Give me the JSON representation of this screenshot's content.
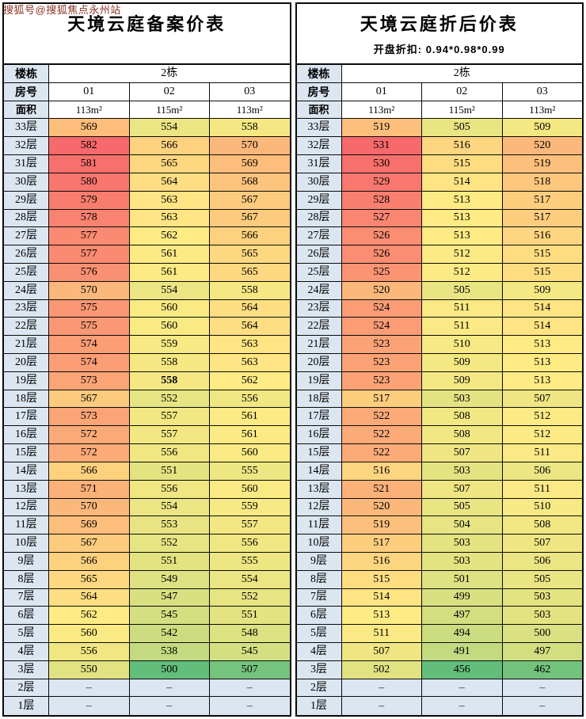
{
  "watermark": "搜狐号@搜狐焦点永州站",
  "colors": {
    "header_bg": "#DCE6F1",
    "border": "#0A0A0A",
    "text": "#000000",
    "watermark_color": "#8B3124",
    "scale_min_color": "#63BE7B",
    "scale_mid_color": "#FFEB84",
    "scale_max_color": "#F8696B"
  },
  "chart_data": [
    {
      "type": "heatmap",
      "title": "天境云庭备案价表",
      "subtitle": "",
      "header": {
        "building_label": "楼栋",
        "building_value": "2栋",
        "room_label": "房号",
        "rooms": [
          "01",
          "02",
          "03"
        ],
        "area_label": "面积",
        "areas": [
          "113m²",
          "115m²",
          "113m²"
        ]
      },
      "color_scale": {
        "min_color": "#63BE7B",
        "mid_color": "#FFEB84",
        "max_color": "#F8696B",
        "midpoint": "median"
      },
      "bold_cell": {
        "floor": "19层",
        "col_index": 1
      },
      "rows": [
        {
          "floor": "33层",
          "values": [
            569,
            554,
            558
          ]
        },
        {
          "floor": "32层",
          "values": [
            582,
            566,
            570
          ]
        },
        {
          "floor": "31层",
          "values": [
            581,
            565,
            569
          ]
        },
        {
          "floor": "30层",
          "values": [
            580,
            564,
            568
          ]
        },
        {
          "floor": "29层",
          "values": [
            579,
            563,
            567
          ]
        },
        {
          "floor": "28层",
          "values": [
            578,
            563,
            567
          ]
        },
        {
          "floor": "27层",
          "values": [
            577,
            562,
            566
          ]
        },
        {
          "floor": "26层",
          "values": [
            577,
            561,
            565
          ]
        },
        {
          "floor": "25层",
          "values": [
            576,
            561,
            565
          ]
        },
        {
          "floor": "24层",
          "values": [
            570,
            554,
            558
          ]
        },
        {
          "floor": "23层",
          "values": [
            575,
            560,
            564
          ]
        },
        {
          "floor": "22层",
          "values": [
            575,
            560,
            564
          ]
        },
        {
          "floor": "21层",
          "values": [
            574,
            559,
            563
          ]
        },
        {
          "floor": "20层",
          "values": [
            574,
            558,
            563
          ]
        },
        {
          "floor": "19层",
          "values": [
            573,
            558,
            562
          ]
        },
        {
          "floor": "18层",
          "values": [
            567,
            552,
            556
          ]
        },
        {
          "floor": "17层",
          "values": [
            573,
            557,
            561
          ]
        },
        {
          "floor": "16层",
          "values": [
            572,
            557,
            561
          ]
        },
        {
          "floor": "15层",
          "values": [
            572,
            556,
            560
          ]
        },
        {
          "floor": "14层",
          "values": [
            566,
            551,
            555
          ]
        },
        {
          "floor": "13层",
          "values": [
            571,
            556,
            560
          ]
        },
        {
          "floor": "12层",
          "values": [
            570,
            554,
            559
          ]
        },
        {
          "floor": "11层",
          "values": [
            569,
            553,
            557
          ]
        },
        {
          "floor": "10层",
          "values": [
            567,
            552,
            556
          ]
        },
        {
          "floor": "9层",
          "values": [
            566,
            551,
            555
          ]
        },
        {
          "floor": "8层",
          "values": [
            565,
            549,
            554
          ]
        },
        {
          "floor": "7层",
          "values": [
            564,
            547,
            552
          ]
        },
        {
          "floor": "6层",
          "values": [
            562,
            545,
            551
          ]
        },
        {
          "floor": "5层",
          "values": [
            560,
            542,
            548
          ]
        },
        {
          "floor": "4层",
          "values": [
            556,
            538,
            545
          ]
        },
        {
          "floor": "3层",
          "values": [
            550,
            500,
            507
          ]
        },
        {
          "floor": "2层",
          "values": [
            "–",
            "–",
            "–"
          ]
        },
        {
          "floor": "1层",
          "values": [
            "–",
            "–",
            "–"
          ]
        }
      ]
    },
    {
      "type": "heatmap",
      "title": "天境云庭折后价表",
      "subtitle": "开盘折扣: 0.94*0.98*0.99",
      "header": {
        "building_label": "楼栋",
        "building_value": "2栋",
        "room_label": "房号",
        "rooms": [
          "01",
          "02",
          "03"
        ],
        "area_label": "面积",
        "areas": [
          "113m²",
          "115m²",
          "113m²"
        ]
      },
      "color_scale": {
        "min_color": "#63BE7B",
        "mid_color": "#FFEB84",
        "max_color": "#F8696B",
        "midpoint": "median"
      },
      "bold_cell": null,
      "rows": [
        {
          "floor": "33层",
          "values": [
            519,
            505,
            509
          ]
        },
        {
          "floor": "32层",
          "values": [
            531,
            516,
            520
          ]
        },
        {
          "floor": "31层",
          "values": [
            530,
            515,
            519
          ]
        },
        {
          "floor": "30层",
          "values": [
            529,
            514,
            518
          ]
        },
        {
          "floor": "29层",
          "values": [
            528,
            513,
            517
          ]
        },
        {
          "floor": "28层",
          "values": [
            527,
            513,
            517
          ]
        },
        {
          "floor": "27层",
          "values": [
            526,
            513,
            516
          ]
        },
        {
          "floor": "26层",
          "values": [
            526,
            512,
            515
          ]
        },
        {
          "floor": "25层",
          "values": [
            525,
            512,
            515
          ]
        },
        {
          "floor": "24层",
          "values": [
            520,
            505,
            509
          ]
        },
        {
          "floor": "23层",
          "values": [
            524,
            511,
            514
          ]
        },
        {
          "floor": "22层",
          "values": [
            524,
            511,
            514
          ]
        },
        {
          "floor": "21层",
          "values": [
            523,
            510,
            513
          ]
        },
        {
          "floor": "20层",
          "values": [
            523,
            509,
            513
          ]
        },
        {
          "floor": "19层",
          "values": [
            523,
            509,
            513
          ]
        },
        {
          "floor": "18层",
          "values": [
            517,
            503,
            507
          ]
        },
        {
          "floor": "17层",
          "values": [
            522,
            508,
            512
          ]
        },
        {
          "floor": "16层",
          "values": [
            522,
            508,
            512
          ]
        },
        {
          "floor": "15层",
          "values": [
            522,
            507,
            511
          ]
        },
        {
          "floor": "14层",
          "values": [
            516,
            503,
            506
          ]
        },
        {
          "floor": "13层",
          "values": [
            521,
            507,
            511
          ]
        },
        {
          "floor": "12层",
          "values": [
            520,
            505,
            510
          ]
        },
        {
          "floor": "11层",
          "values": [
            519,
            504,
            508
          ]
        },
        {
          "floor": "10层",
          "values": [
            517,
            503,
            507
          ]
        },
        {
          "floor": "9层",
          "values": [
            516,
            503,
            506
          ]
        },
        {
          "floor": "8层",
          "values": [
            515,
            501,
            505
          ]
        },
        {
          "floor": "7层",
          "values": [
            514,
            499,
            503
          ]
        },
        {
          "floor": "6层",
          "values": [
            513,
            497,
            503
          ]
        },
        {
          "floor": "5层",
          "values": [
            511,
            494,
            500
          ]
        },
        {
          "floor": "4层",
          "values": [
            507,
            491,
            497
          ]
        },
        {
          "floor": "3层",
          "values": [
            502,
            456,
            462
          ]
        },
        {
          "floor": "2层",
          "values": [
            "–",
            "–",
            "–"
          ]
        },
        {
          "floor": "1层",
          "values": [
            "–",
            "–",
            "–"
          ]
        }
      ]
    }
  ]
}
